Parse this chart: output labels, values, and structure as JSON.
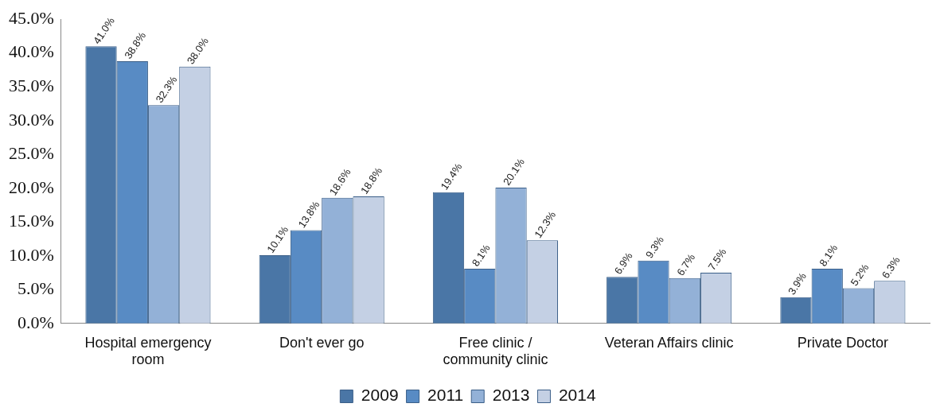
{
  "chart_data": {
    "type": "bar",
    "categories": [
      "Hospital emergency room",
      "Don't ever go",
      "Free clinic / community clinic",
      "Veteran Affairs clinic",
      "Private Doctor"
    ],
    "series": [
      {
        "name": "2009",
        "color": "#4a76a6",
        "values": [
          41.0,
          10.1,
          19.4,
          6.9,
          3.9
        ],
        "value_labels": [
          "41.0%",
          "10.1%",
          "19.4%",
          "6.9%",
          "3.9%"
        ]
      },
      {
        "name": "2011",
        "color": "#588bc4",
        "values": [
          38.8,
          13.8,
          8.1,
          9.3,
          8.1
        ],
        "value_labels": [
          "38.8%",
          "13.8%",
          "8.1%",
          "9.3%",
          "8.1%"
        ]
      },
      {
        "name": "2013",
        "color": "#93b1d7",
        "values": [
          32.3,
          18.6,
          20.1,
          6.7,
          5.2
        ],
        "value_labels": [
          "32.3%",
          "18.6%",
          "20.1%",
          "6.7%",
          "5.2%"
        ]
      },
      {
        "name": "2014",
        "color": "#c4d0e4",
        "values": [
          38.0,
          18.8,
          12.3,
          7.5,
          6.3
        ],
        "value_labels": [
          "38.0%",
          "18.8%",
          "12.3%",
          "7.5%",
          "6.3%"
        ]
      }
    ],
    "ylim": [
      0,
      45
    ],
    "yticks": [
      {
        "value": 0,
        "label": "0.0%"
      },
      {
        "value": 5,
        "label": "5.0%"
      },
      {
        "value": 10,
        "label": "10.0%"
      },
      {
        "value": 15,
        "label": "15.0%"
      },
      {
        "value": 20,
        "label": "20.0%"
      },
      {
        "value": 25,
        "label": "25.0%"
      },
      {
        "value": 30,
        "label": "30.0%"
      },
      {
        "value": 35,
        "label": "35.0%"
      },
      {
        "value": 40,
        "label": "40.0%"
      },
      {
        "value": 45,
        "label": "45.0%"
      }
    ],
    "grid": false,
    "legend": "bottom"
  }
}
